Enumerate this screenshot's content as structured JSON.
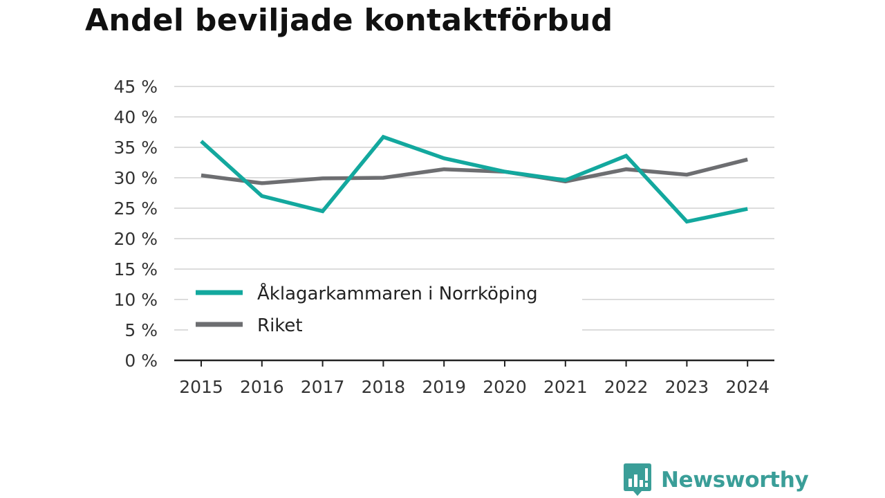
{
  "title": "Andel beviljade kontaktförbud",
  "brand": {
    "name": "Newsworthy",
    "logo_icon": "bar-chart-speech-bubble-icon",
    "color": "#3a9e98"
  },
  "chart_data": {
    "type": "line",
    "x": [
      "2015",
      "2016",
      "2017",
      "2018",
      "2019",
      "2020",
      "2021",
      "2022",
      "2023",
      "2024"
    ],
    "yticks": [
      "0 %",
      "5 %",
      "10 %",
      "15 %",
      "20 %",
      "25 %",
      "30 %",
      "35 %",
      "40 %",
      "45 %"
    ],
    "ylim": [
      0,
      45
    ],
    "grid": true,
    "legend_position": "bottom-left inside plot",
    "series": [
      {
        "name": "Åklagarkammaren i Norrköping",
        "color": "#13a89e",
        "values": [
          36.0,
          27.0,
          24.5,
          36.7,
          33.2,
          31.0,
          29.6,
          33.6,
          22.8,
          24.9
        ]
      },
      {
        "name": "Riket",
        "color": "#6d6e71",
        "values": [
          30.4,
          29.1,
          29.9,
          30.0,
          31.4,
          31.0,
          29.4,
          31.4,
          30.5,
          33.0
        ]
      }
    ]
  }
}
